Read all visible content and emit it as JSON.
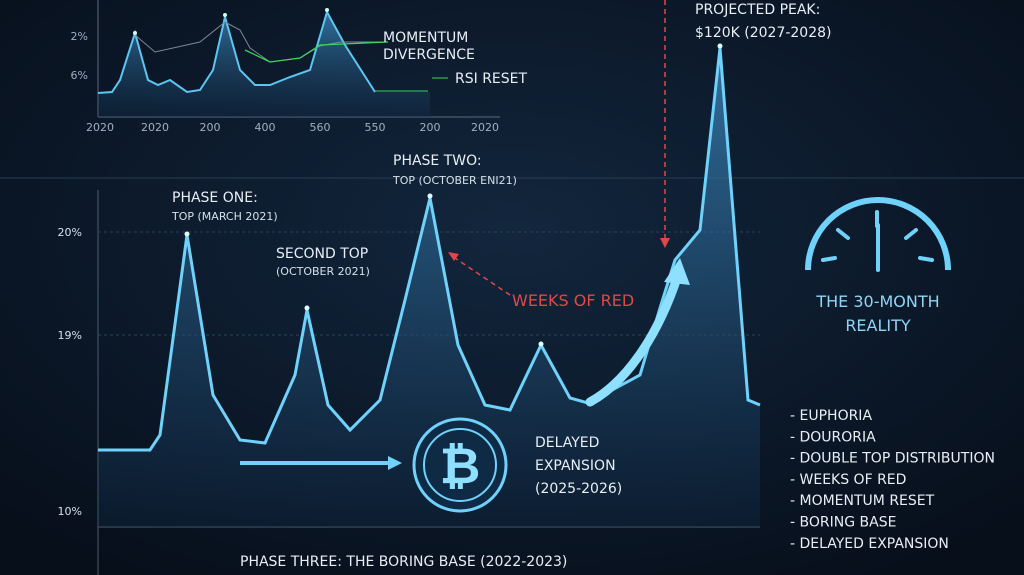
{
  "inset": {
    "y_labels": [
      "2%",
      "6%"
    ],
    "x_labels": [
      "2020",
      "2020",
      "200",
      "400",
      "560",
      "550",
      "200",
      "2020"
    ],
    "annotations": [
      "MOMENTUM",
      "DIVERGENCE",
      "RSI RESET"
    ]
  },
  "main": {
    "y_labels": [
      "20%",
      "19%",
      "10%"
    ],
    "projected_peak": [
      "PROJECTED PEAK:",
      "$120K (2027-2028)"
    ],
    "phase_one": [
      "PHASE ONE:",
      "TOP (MARCH 2021)"
    ],
    "phase_two": [
      "PHASE TWO:",
      "TOP (OCTOBER ENI21)"
    ],
    "second_top": [
      "SECOND TOP",
      "(OCTOBER 2021)"
    ],
    "weeks_of_red": "WEEKS OF RED",
    "delayed_expansion": [
      "DELAYED",
      "EXPANSION",
      "(2025-2026)"
    ],
    "bottom_caption": "PHASE THREE: THE BORING BASE (2022-2023)"
  },
  "gauge": {
    "title": [
      "THE 30-MONTH",
      "REALITY"
    ]
  },
  "list": [
    "- EUPHORIA",
    "- DOURORIA",
    "- DOUBLE TOP DISTRIBUTION",
    "- WEEKS OF RED",
    "- MOMENTUM RESET",
    "- BORING BASE",
    "- DELAYED EXPANSION"
  ]
}
